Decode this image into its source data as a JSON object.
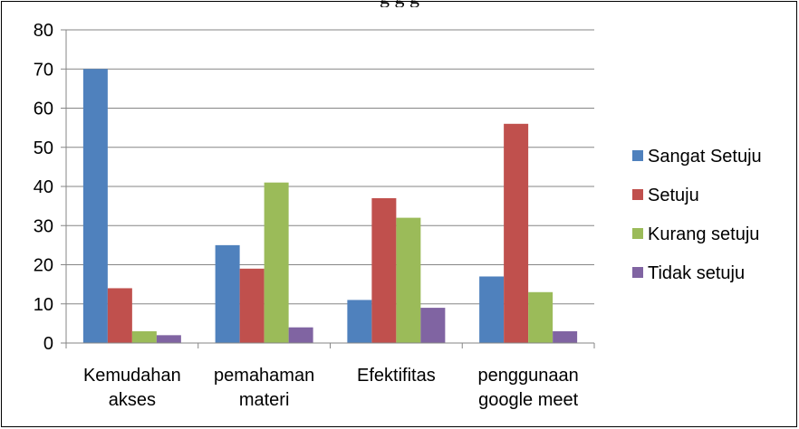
{
  "caption_fragment": "g                                                                        g   g",
  "chart_data": {
    "type": "bar",
    "categories": [
      [
        "Kemudahan",
        "akses"
      ],
      [
        "pemahaman",
        "materi"
      ],
      [
        "Efektifitas"
      ],
      [
        "penggunaan",
        "google meet"
      ]
    ],
    "series": [
      {
        "name": "Sangat Setuju",
        "color": "#4F81BD",
        "values": [
          70,
          25,
          11,
          17
        ]
      },
      {
        "name": "Setuju",
        "color": "#C0504D",
        "values": [
          14,
          19,
          37,
          56
        ]
      },
      {
        "name": "Kurang setuju",
        "color": "#9BBB59",
        "values": [
          3,
          41,
          32,
          13
        ]
      },
      {
        "name": "Tidak setuju",
        "color": "#8064A2",
        "values": [
          2,
          4,
          9,
          3
        ]
      }
    ],
    "ylim": [
      0,
      80
    ],
    "yticks": [
      0,
      10,
      20,
      30,
      40,
      50,
      60,
      70,
      80
    ],
    "grid": true,
    "legend_position": "right"
  }
}
